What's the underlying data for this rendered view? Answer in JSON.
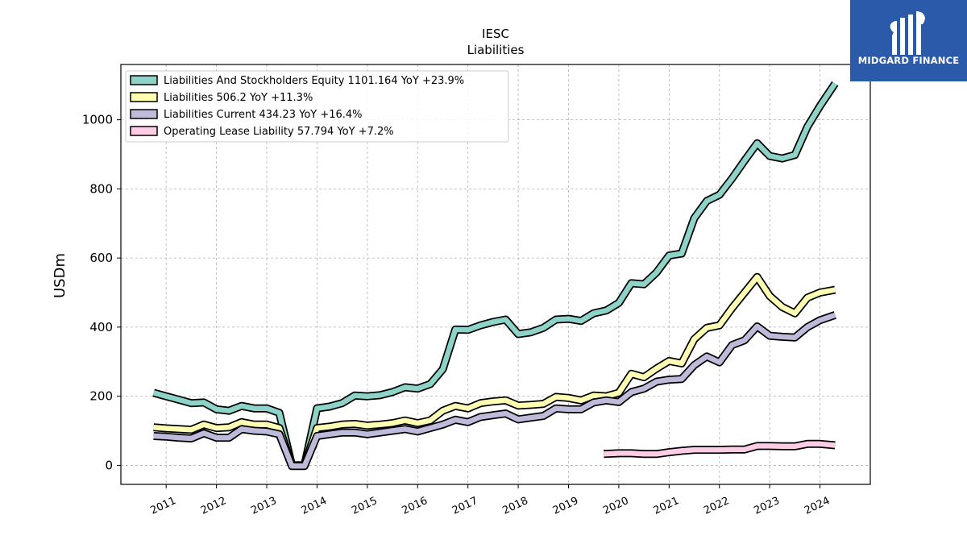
{
  "logo": {
    "text": "MIDGARD FINANCE",
    "bg_color": "#2b5aab"
  },
  "chart_data": {
    "type": "line",
    "title": "IESC",
    "subtitle": "Liabilities",
    "ylabel": "USDm",
    "xlabel": "",
    "xlim": [
      2010.1,
      2025.0
    ],
    "ylim": [
      -55,
      1160
    ],
    "yticks": [
      0,
      200,
      400,
      600,
      800,
      1000
    ],
    "xticks": [
      "2011",
      "2012",
      "2013",
      "2014",
      "2015",
      "2016",
      "2017",
      "2018",
      "2019",
      "2020",
      "2021",
      "2022",
      "2023",
      "2024"
    ],
    "grid": true,
    "legend_position": "top-left",
    "series": [
      {
        "name": "Liabilities And Stockholders Equity  1101.164 YoY +23.9%",
        "color": "#8dd3c7",
        "points": [
          [
            2010.75,
            210
          ],
          [
            2011.0,
            200
          ],
          [
            2011.25,
            190
          ],
          [
            2011.5,
            180
          ],
          [
            2011.75,
            182
          ],
          [
            2012.0,
            162
          ],
          [
            2012.25,
            158
          ],
          [
            2012.5,
            172
          ],
          [
            2012.75,
            165
          ],
          [
            2013.0,
            165
          ],
          [
            2013.25,
            152
          ],
          [
            2013.5,
            0
          ],
          [
            2013.75,
            0
          ],
          [
            2014.0,
            165
          ],
          [
            2014.25,
            170
          ],
          [
            2014.5,
            180
          ],
          [
            2014.75,
            202
          ],
          [
            2015.0,
            200
          ],
          [
            2015.25,
            203
          ],
          [
            2015.5,
            212
          ],
          [
            2015.75,
            226
          ],
          [
            2016.0,
            222
          ],
          [
            2016.25,
            235
          ],
          [
            2016.5,
            278
          ],
          [
            2016.75,
            393
          ],
          [
            2017.0,
            392
          ],
          [
            2017.25,
            405
          ],
          [
            2017.5,
            415
          ],
          [
            2017.75,
            422
          ],
          [
            2018.0,
            380
          ],
          [
            2018.25,
            385
          ],
          [
            2018.5,
            398
          ],
          [
            2018.75,
            422
          ],
          [
            2019.0,
            424
          ],
          [
            2019.25,
            418
          ],
          [
            2019.5,
            440
          ],
          [
            2019.75,
            448
          ],
          [
            2020.0,
            470
          ],
          [
            2020.25,
            527
          ],
          [
            2020.5,
            524
          ],
          [
            2020.75,
            558
          ],
          [
            2021.0,
            607
          ],
          [
            2021.25,
            613
          ],
          [
            2021.5,
            715
          ],
          [
            2021.75,
            765
          ],
          [
            2022.0,
            783
          ],
          [
            2022.25,
            830
          ],
          [
            2022.5,
            882
          ],
          [
            2022.75,
            932
          ],
          [
            2023.0,
            895
          ],
          [
            2023.25,
            888
          ],
          [
            2023.5,
            898
          ],
          [
            2023.75,
            980
          ],
          [
            2024.0,
            1040
          ],
          [
            2024.3,
            1105
          ]
        ]
      },
      {
        "name": "Liabilities  506.2 YoY +11.3%",
        "color": "#ffffb3",
        "points": [
          [
            2010.75,
            110
          ],
          [
            2011.0,
            107
          ],
          [
            2011.25,
            105
          ],
          [
            2011.5,
            103
          ],
          [
            2011.75,
            118
          ],
          [
            2012.0,
            108
          ],
          [
            2012.25,
            110
          ],
          [
            2012.5,
            125
          ],
          [
            2012.75,
            118
          ],
          [
            2013.0,
            118
          ],
          [
            2013.25,
            108
          ],
          [
            2013.5,
            0
          ],
          [
            2013.75,
            0
          ],
          [
            2014.0,
            108
          ],
          [
            2014.25,
            112
          ],
          [
            2014.5,
            118
          ],
          [
            2014.75,
            120
          ],
          [
            2015.0,
            115
          ],
          [
            2015.25,
            118
          ],
          [
            2015.5,
            122
          ],
          [
            2015.75,
            130
          ],
          [
            2016.0,
            122
          ],
          [
            2016.25,
            130
          ],
          [
            2016.5,
            158
          ],
          [
            2016.75,
            172
          ],
          [
            2017.0,
            165
          ],
          [
            2017.25,
            180
          ],
          [
            2017.5,
            185
          ],
          [
            2017.75,
            188
          ],
          [
            2018.0,
            173
          ],
          [
            2018.25,
            175
          ],
          [
            2018.5,
            178
          ],
          [
            2018.75,
            198
          ],
          [
            2019.0,
            195
          ],
          [
            2019.25,
            188
          ],
          [
            2019.5,
            202
          ],
          [
            2019.75,
            200
          ],
          [
            2020.0,
            210
          ],
          [
            2020.25,
            265
          ],
          [
            2020.5,
            255
          ],
          [
            2020.75,
            280
          ],
          [
            2021.0,
            302
          ],
          [
            2021.25,
            295
          ],
          [
            2021.5,
            365
          ],
          [
            2021.75,
            398
          ],
          [
            2022.0,
            405
          ],
          [
            2022.25,
            455
          ],
          [
            2022.5,
            500
          ],
          [
            2022.75,
            545
          ],
          [
            2023.0,
            490
          ],
          [
            2023.25,
            458
          ],
          [
            2023.5,
            440
          ],
          [
            2023.75,
            485
          ],
          [
            2024.0,
            500
          ],
          [
            2024.3,
            508
          ]
        ]
      },
      {
        "name": "Liabilities Current  434.23 YoY +16.4%",
        "color": "#bebada",
        "points": [
          [
            2010.75,
            85
          ],
          [
            2011.0,
            83
          ],
          [
            2011.25,
            80
          ],
          [
            2011.5,
            78
          ],
          [
            2011.75,
            93
          ],
          [
            2012.0,
            80
          ],
          [
            2012.25,
            80
          ],
          [
            2012.5,
            105
          ],
          [
            2012.75,
            100
          ],
          [
            2013.0,
            98
          ],
          [
            2013.25,
            90
          ],
          [
            2013.5,
            -2
          ],
          [
            2013.75,
            -2
          ],
          [
            2014.0,
            85
          ],
          [
            2014.25,
            90
          ],
          [
            2014.5,
            95
          ],
          [
            2014.75,
            95
          ],
          [
            2015.0,
            90
          ],
          [
            2015.25,
            95
          ],
          [
            2015.5,
            100
          ],
          [
            2015.75,
            105
          ],
          [
            2016.0,
            98
          ],
          [
            2016.25,
            108
          ],
          [
            2016.5,
            118
          ],
          [
            2016.75,
            132
          ],
          [
            2017.0,
            125
          ],
          [
            2017.25,
            140
          ],
          [
            2017.5,
            145
          ],
          [
            2017.75,
            150
          ],
          [
            2018.0,
            133
          ],
          [
            2018.25,
            138
          ],
          [
            2018.5,
            143
          ],
          [
            2018.75,
            165
          ],
          [
            2019.0,
            162
          ],
          [
            2019.25,
            162
          ],
          [
            2019.5,
            182
          ],
          [
            2019.75,
            188
          ],
          [
            2020.0,
            183
          ],
          [
            2020.25,
            212
          ],
          [
            2020.5,
            222
          ],
          [
            2020.75,
            242
          ],
          [
            2021.0,
            248
          ],
          [
            2021.25,
            250
          ],
          [
            2021.5,
            290
          ],
          [
            2021.75,
            315
          ],
          [
            2022.0,
            298
          ],
          [
            2022.25,
            348
          ],
          [
            2022.5,
            362
          ],
          [
            2022.75,
            402
          ],
          [
            2023.0,
            375
          ],
          [
            2023.25,
            372
          ],
          [
            2023.5,
            370
          ],
          [
            2023.75,
            400
          ],
          [
            2024.0,
            420
          ],
          [
            2024.3,
            435
          ]
        ]
      },
      {
        "name": "Operating Lease Liability  57.794 YoY +7.2%",
        "color": "#fccde5",
        "points": [
          [
            2019.7,
            33
          ],
          [
            2020.0,
            35
          ],
          [
            2020.25,
            35
          ],
          [
            2020.5,
            33
          ],
          [
            2020.75,
            33
          ],
          [
            2021.0,
            38
          ],
          [
            2021.25,
            42
          ],
          [
            2021.5,
            45
          ],
          [
            2021.75,
            45
          ],
          [
            2022.0,
            45
          ],
          [
            2022.25,
            46
          ],
          [
            2022.5,
            46
          ],
          [
            2022.75,
            56
          ],
          [
            2023.0,
            56
          ],
          [
            2023.25,
            55
          ],
          [
            2023.5,
            55
          ],
          [
            2023.75,
            62
          ],
          [
            2024.0,
            62
          ],
          [
            2024.3,
            58
          ]
        ]
      }
    ]
  }
}
